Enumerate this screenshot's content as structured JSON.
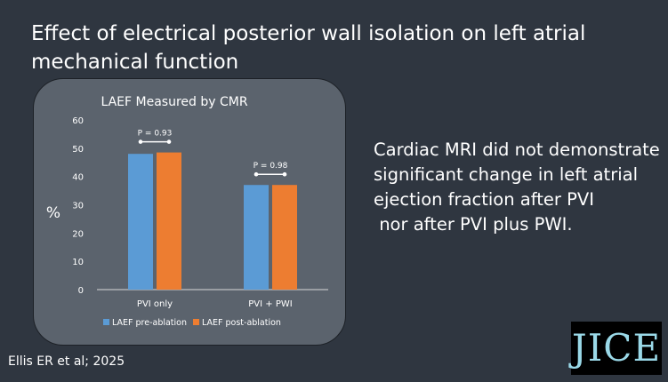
{
  "slide": {
    "title": "Effect of electrical posterior wall isolation on left atrial mechanical function",
    "side_text": [
      "Cardiac MRI did not demonstrate",
      "significant change in left atrial",
      "ejection fraction after PVI",
      " nor after PVI plus PWI."
    ],
    "citation": "Ellis ER et al; 2025",
    "logo_text": "JICE"
  },
  "chart_data": {
    "type": "bar",
    "title": "LAEF Measured by CMR",
    "ylabel": "%",
    "xlabel": "",
    "categories": [
      "PVI only",
      "PVI + PWI"
    ],
    "series": [
      {
        "name": "LAEF pre-ablation",
        "values": [
          48,
          37
        ],
        "color": "#5b9bd5"
      },
      {
        "name": "LAEF post-ablation",
        "values": [
          48.5,
          37
        ],
        "color": "#ed7d31"
      }
    ],
    "ylim": [
      0,
      60
    ],
    "yticks": [
      0,
      10,
      20,
      30,
      40,
      50,
      60
    ],
    "grid": false,
    "legend": "bottom",
    "annotations": [
      {
        "category": "PVI only",
        "text": "P = 0.93"
      },
      {
        "category": "PVI + PWI",
        "text": "P = 0.98"
      }
    ]
  }
}
